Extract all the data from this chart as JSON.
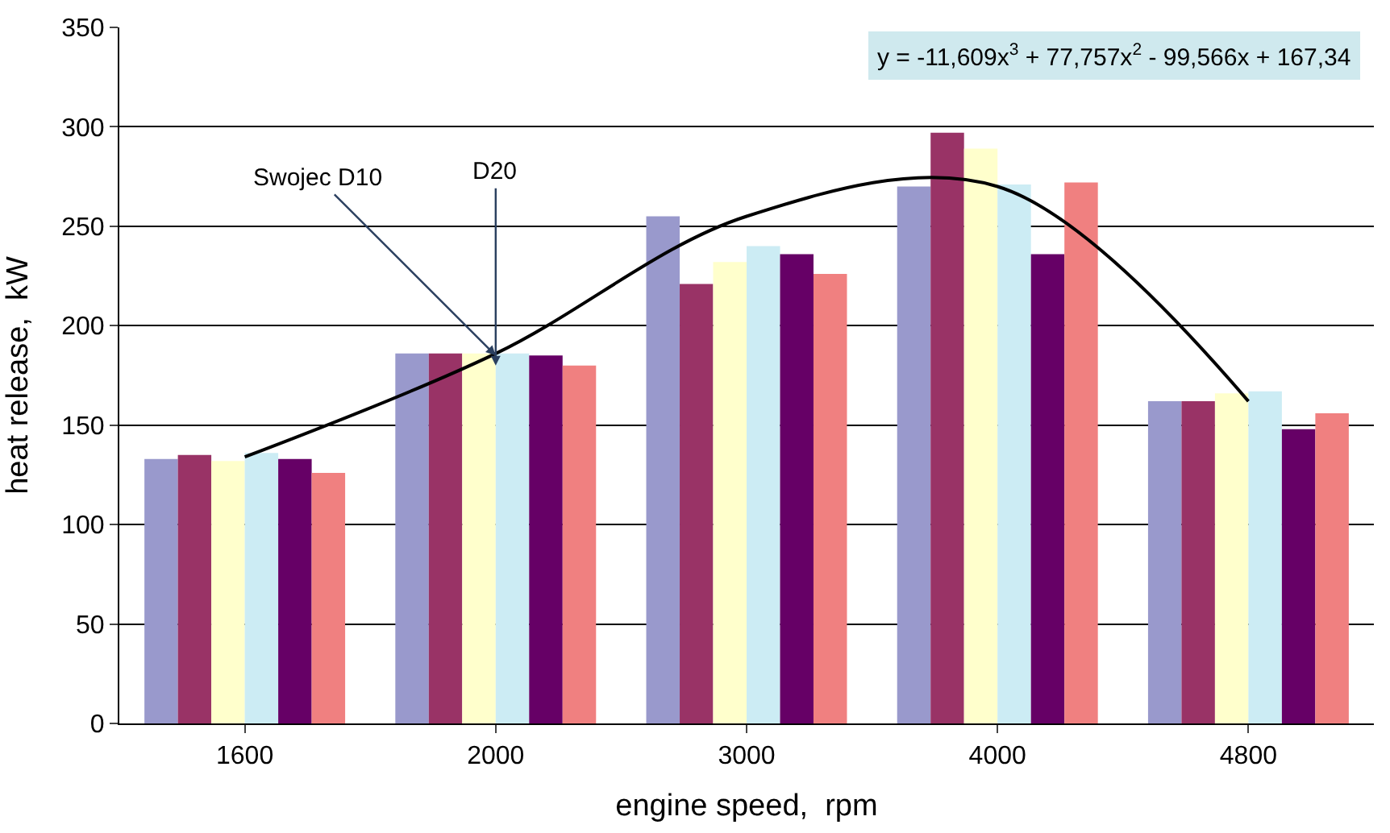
{
  "chart_data": {
    "type": "bar",
    "xlabel": "engine speed,  rpm",
    "ylabel": "heat release,  kW",
    "categories": [
      "1600",
      "2000",
      "3000",
      "4000",
      "4800"
    ],
    "series": [
      {
        "color": "#9999cc",
        "values": [
          133,
          186,
          255,
          270,
          162
        ]
      },
      {
        "color": "#993366",
        "values": [
          135,
          186,
          221,
          297,
          162
        ]
      },
      {
        "color": "#ffffcc",
        "values": [
          132,
          186,
          232,
          289,
          166
        ]
      },
      {
        "color": "#ccecf4",
        "values": [
          136,
          186,
          240,
          271,
          167
        ]
      },
      {
        "color": "#660066",
        "values": [
          133,
          185,
          236,
          236,
          148
        ]
      },
      {
        "color": "#f08080",
        "values": [
          126,
          180,
          226,
          272,
          156
        ]
      },
      {
        "type": "line",
        "color": "#000000",
        "values": [
          134,
          186,
          255,
          270,
          162
        ]
      }
    ],
    "annotations": [
      "y = -11,609x$^{3}$ + 77,757x$^{2}$ - 99,566x + 167,34",
      {
        "text": "Swojec D10",
        "x": "2000",
        "y": 185
      },
      {
        "text": "D20",
        "x": "2000",
        "y": 180
      }
    ],
    "ylim": [
      0,
      350
    ],
    "yticks": [
      0,
      50,
      100,
      150,
      200,
      250,
      300,
      350
    ],
    "grid": "y"
  }
}
